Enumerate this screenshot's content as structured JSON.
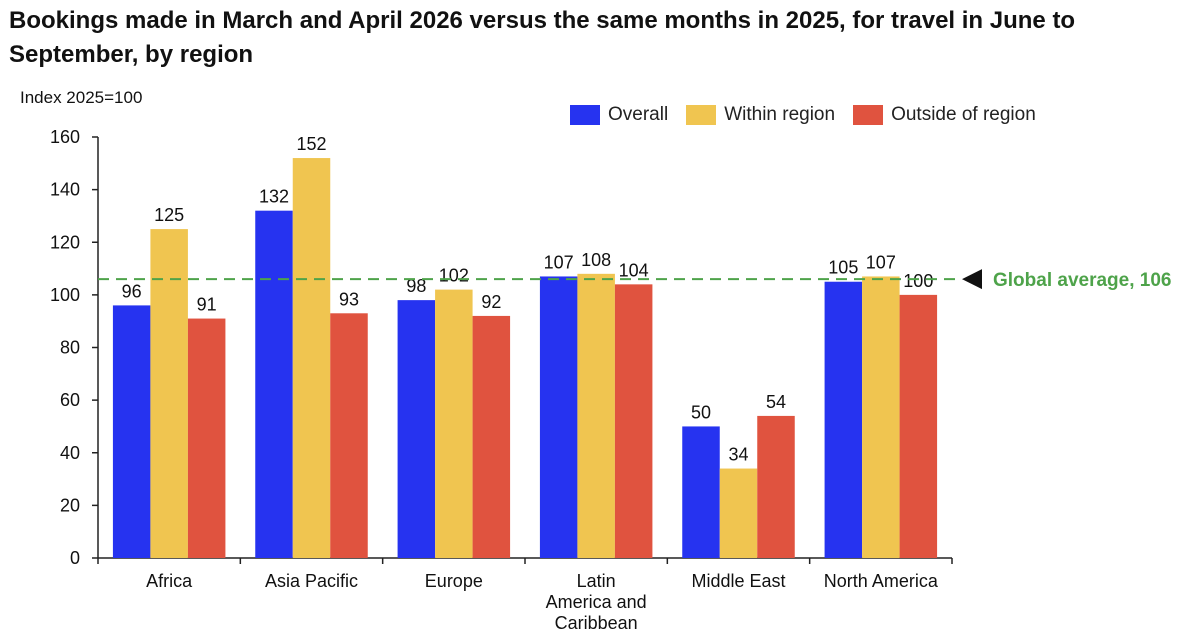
{
  "chart_data": {
    "type": "bar",
    "title": "Bookings made in March and April 2026 versus the same months in 2025, for travel in June to September, by region",
    "ylabel": "Index 2025=100",
    "xlabel": "",
    "ylim": [
      0,
      160
    ],
    "yticks": [
      0,
      20,
      40,
      60,
      80,
      100,
      120,
      140,
      160
    ],
    "grid": false,
    "legend_position": "top-right",
    "categories": [
      "Africa",
      "Asia Pacific",
      "Europe",
      "Latin America and Caribbean",
      "Middle East",
      "North America"
    ],
    "category_lines": [
      [
        "Africa"
      ],
      [
        "Asia Pacific"
      ],
      [
        "Europe"
      ],
      [
        "Latin",
        "America and",
        "Caribbean"
      ],
      [
        "Middle East"
      ],
      [
        "North America"
      ]
    ],
    "series": [
      {
        "name": "Overall",
        "color": "#2633f0",
        "values": [
          96,
          132,
          98,
          107,
          50,
          105
        ]
      },
      {
        "name": "Within region",
        "color": "#f0c550",
        "values": [
          125,
          152,
          102,
          108,
          34,
          107
        ]
      },
      {
        "name": "Outside of region",
        "color": "#e0533f",
        "values": [
          91,
          93,
          92,
          104,
          54,
          100
        ]
      }
    ],
    "reference_line": {
      "label": "Global average, 106",
      "value": 106,
      "color": "#4ea34a"
    }
  }
}
